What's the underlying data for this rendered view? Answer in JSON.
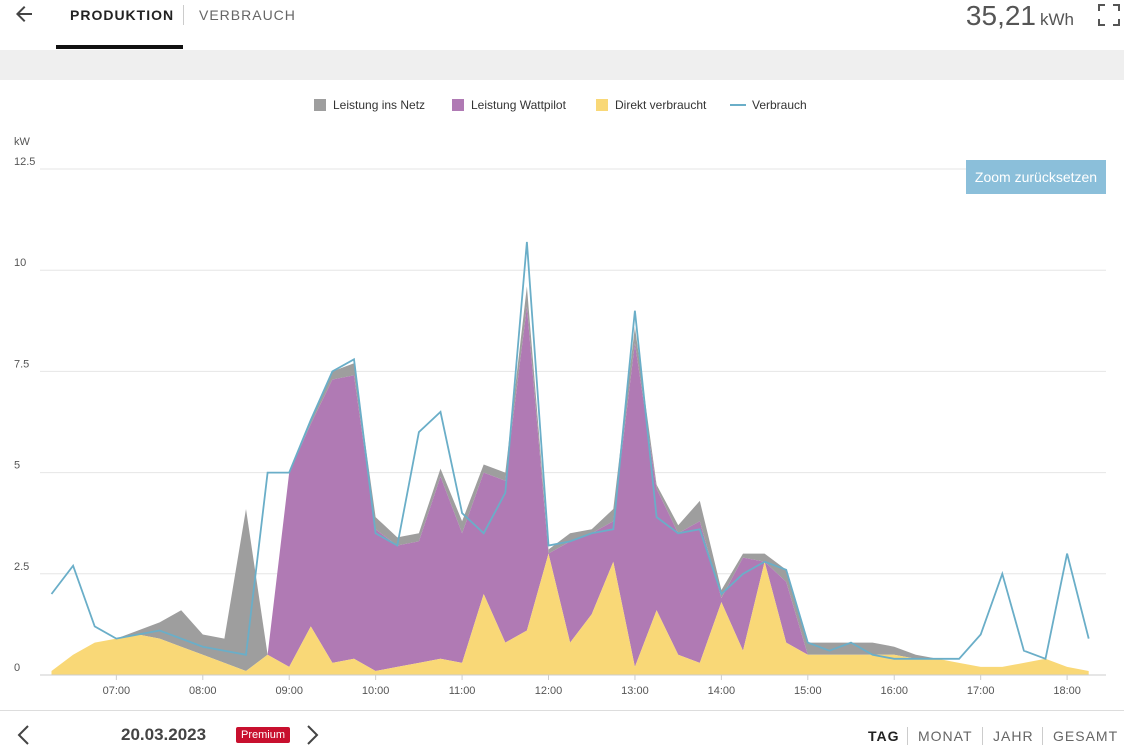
{
  "header": {
    "tabs": [
      {
        "label": "PRODUKTION",
        "active": true
      },
      {
        "label": "VERBRAUCH",
        "active": false
      }
    ],
    "total_value": "35,21",
    "total_unit": "kWh",
    "icons": {
      "back": "back-arrow-icon",
      "fullscreen": "fullscreen-icon"
    }
  },
  "chart": {
    "zoom_reset_label": "Zoom zurücksetzen"
  },
  "footer": {
    "date": "20.03.2023",
    "premium_badge": "Premium",
    "periods": [
      "TAG",
      "MONAT",
      "JAHR",
      "GESAMT"
    ],
    "active_period": "TAG"
  },
  "colors": {
    "grid_feed": "#9e9e9e",
    "wattpilot": "#b07ab4",
    "direct": "#f9d877",
    "consumption": "#6aaec8",
    "premium": "#c8102e",
    "zoom_button": "#8bbfda"
  },
  "chart_data": {
    "type": "area",
    "ylabel": "kW",
    "ylim": [
      0,
      12.5
    ],
    "y_ticks": [
      "0",
      "2.5",
      "5",
      "7.5",
      "10",
      "12.5"
    ],
    "x_ticks": [
      "07:00",
      "08:00",
      "09:00",
      "10:00",
      "11:00",
      "12:00",
      "13:00",
      "14:00",
      "15:00",
      "16:00",
      "17:00",
      "18:00"
    ],
    "xlim": [
      "06:07",
      "18:27"
    ],
    "x_times": [
      "06:15",
      "06:30",
      "06:45",
      "07:00",
      "07:15",
      "07:30",
      "07:45",
      "08:00",
      "08:15",
      "08:30",
      "08:45",
      "09:00",
      "09:15",
      "09:30",
      "09:45",
      "10:00",
      "10:15",
      "10:30",
      "10:45",
      "11:00",
      "11:15",
      "11:30",
      "11:45",
      "12:00",
      "12:15",
      "12:30",
      "12:45",
      "13:00",
      "13:15",
      "13:30",
      "13:45",
      "14:00",
      "14:15",
      "14:30",
      "14:45",
      "15:00",
      "15:15",
      "15:30",
      "15:45",
      "16:00",
      "16:15",
      "16:30",
      "16:45",
      "17:00",
      "17:15",
      "17:30",
      "17:45",
      "18:00",
      "18:15"
    ],
    "series": [
      {
        "name": "Direkt verbraucht",
        "values": [
          0.1,
          0.5,
          0.8,
          0.9,
          1.0,
          0.9,
          0.7,
          0.5,
          0.3,
          0.1,
          0.5,
          0.2,
          1.2,
          0.3,
          0.4,
          0.1,
          0.2,
          0.3,
          0.4,
          0.3,
          2.0,
          0.8,
          1.1,
          3.0,
          0.8,
          1.5,
          2.8,
          0.2,
          1.6,
          0.5,
          0.3,
          1.8,
          0.6,
          2.8,
          0.8,
          0.5,
          0.5,
          0.5,
          0.5,
          0.5,
          0.4,
          0.4,
          0.3,
          0.2,
          0.2,
          0.3,
          0.4,
          0.2,
          0.1
        ]
      },
      {
        "name": "Leistung Wattpilot",
        "values": [
          0,
          0,
          0,
          0,
          0,
          0,
          0,
          0,
          0,
          0,
          0,
          4.8,
          5.0,
          7.0,
          7.0,
          3.5,
          3.0,
          3.0,
          4.5,
          3.2,
          3.0,
          4.0,
          8.0,
          0,
          2.5,
          2.0,
          1.0,
          8.0,
          3.0,
          3.0,
          3.5,
          0.1,
          2.3,
          0,
          1.5,
          0,
          0,
          0,
          0,
          0,
          0,
          0,
          0,
          0,
          0,
          0,
          0,
          0,
          0
        ]
      },
      {
        "name": "Leistung ins Netz",
        "values": [
          0,
          0,
          0,
          0,
          0.1,
          0.4,
          0.9,
          0.5,
          0.6,
          4.0,
          0,
          0,
          0.1,
          0.2,
          0.3,
          0.3,
          0.2,
          0.2,
          0.2,
          0.3,
          0.2,
          0.2,
          0.5,
          0.1,
          0.2,
          0.1,
          0.3,
          0.4,
          0.1,
          0.2,
          0.5,
          0.2,
          0.1,
          0.2,
          0.3,
          0.3,
          0.3,
          0.3,
          0.3,
          0.2,
          0.1,
          0,
          0,
          0,
          0,
          0,
          0,
          0,
          0
        ]
      },
      {
        "name": "Verbrauch",
        "values": [
          2.0,
          2.7,
          1.2,
          0.9,
          1.0,
          1.1,
          0.9,
          0.7,
          0.6,
          0.5,
          5.0,
          5.0,
          6.3,
          7.5,
          7.8,
          3.5,
          3.2,
          6.0,
          6.5,
          4.0,
          3.5,
          4.5,
          10.7,
          3.2,
          3.3,
          3.5,
          3.6,
          9.0,
          3.9,
          3.5,
          3.6,
          2.0,
          2.5,
          2.8,
          2.6,
          0.8,
          0.6,
          0.8,
          0.5,
          0.4,
          0.4,
          0.4,
          0.4,
          1.0,
          2.5,
          0.6,
          0.4,
          3.0,
          0.9
        ]
      }
    ],
    "legend": [
      "Leistung ins Netz",
      "Leistung Wattpilot",
      "Direkt verbraucht",
      "Verbrauch"
    ],
    "legend_placement": "top-center",
    "grid": true
  }
}
